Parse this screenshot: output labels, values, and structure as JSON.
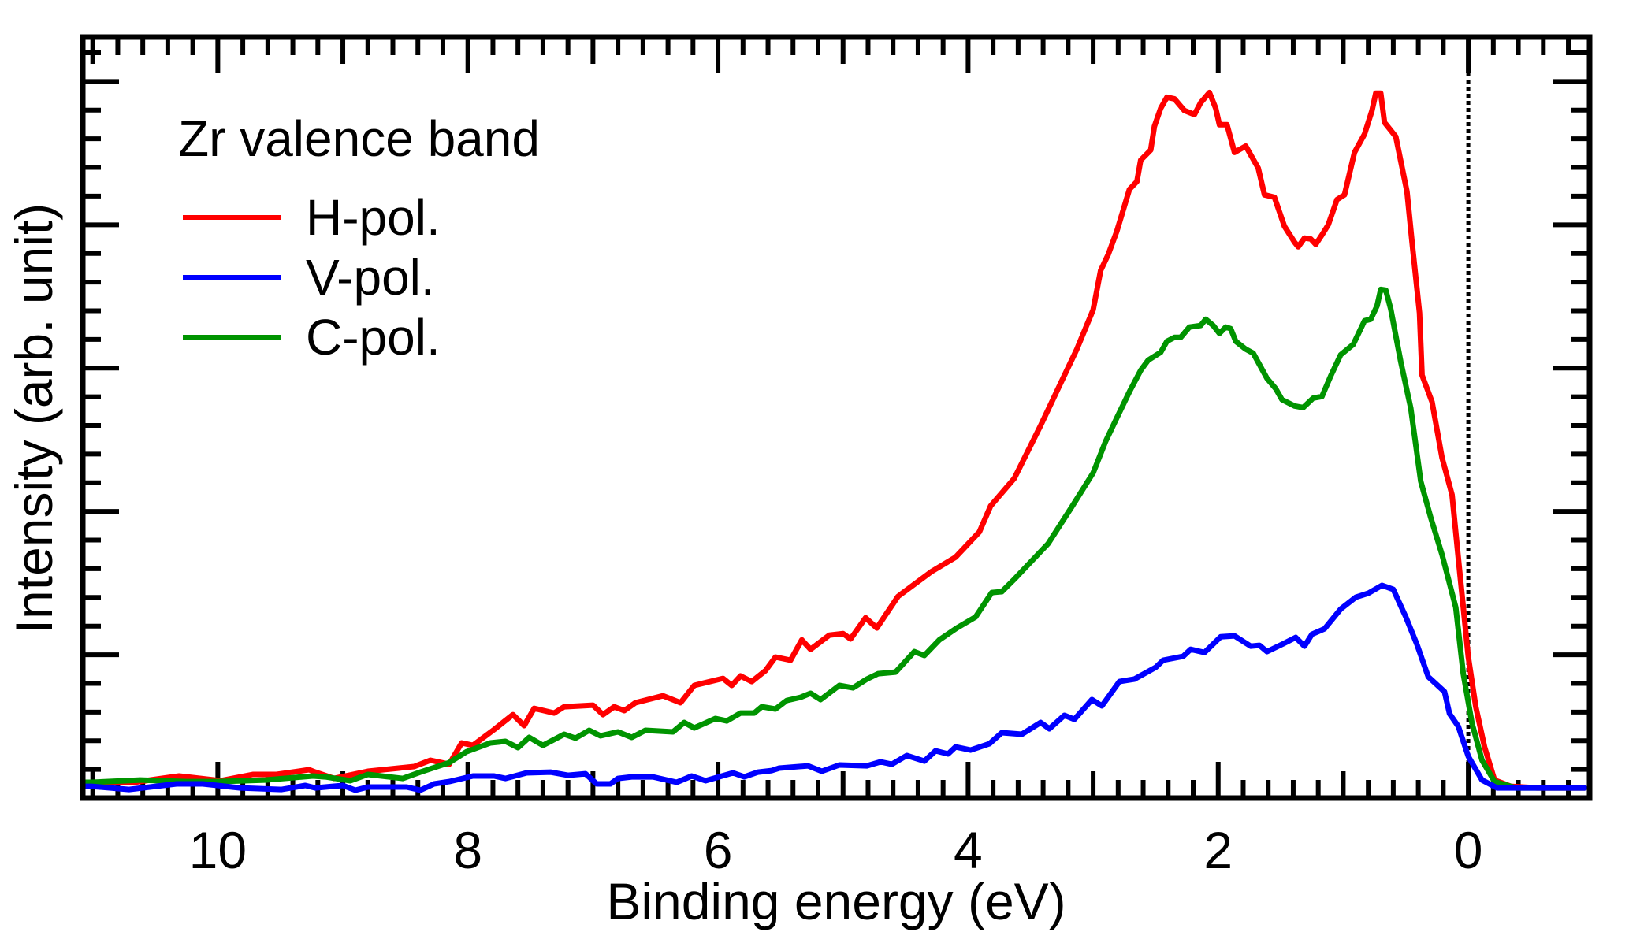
{
  "chart_data": {
    "type": "line",
    "title": "Zr valence band",
    "xlabel": "Binding energy (eV)",
    "ylabel": "Intensity (arb. unit)",
    "xlim": [
      11.08,
      -0.97
    ],
    "x_reversed": true,
    "ylim": [
      0,
      5.31
    ],
    "x_major_ticks": [
      10,
      8,
      6,
      4,
      2,
      0
    ],
    "x_tick_labels": [
      "10",
      "8",
      "6",
      "4",
      "2",
      "0"
    ],
    "x_minor_step": 0.2,
    "x_medium_step": 1,
    "y_major_step": 1,
    "y_minor_step": 0.2,
    "y_tick_labels_shown": false,
    "grid": false,
    "legend_position": "top-left",
    "fermi_level_marker": {
      "x": 0,
      "style": "dotted"
    },
    "series": [
      {
        "name": "H-pol.",
        "color": "#ff0000",
        "x": [
          11.07,
          10.67,
          10.31,
          9.98,
          9.72,
          9.53,
          9.27,
          9.22,
          9.07,
          8.8,
          8.43,
          8.3,
          8.15,
          8.05,
          7.96,
          7.79,
          7.64,
          7.55,
          7.47,
          7.31,
          7.23,
          7.0,
          6.92,
          6.83,
          6.75,
          6.66,
          6.44,
          6.3,
          6.19,
          5.96,
          5.89,
          5.82,
          5.73,
          5.62,
          5.54,
          5.42,
          5.33,
          5.26,
          5.11,
          5.0,
          4.94,
          4.82,
          4.73,
          4.56,
          4.29,
          4.1,
          3.91,
          3.82,
          3.63,
          3.42,
          3.28,
          3.13,
          3.0,
          2.94,
          2.88,
          2.81,
          2.71,
          2.65,
          2.62,
          2.54,
          2.51,
          2.46,
          2.41,
          2.35,
          2.27,
          2.19,
          2.14,
          2.07,
          2.02,
          1.99,
          1.93,
          1.87,
          1.78,
          1.68,
          1.63,
          1.55,
          1.47,
          1.39,
          1.36,
          1.31,
          1.26,
          1.22,
          1.17,
          1.12,
          1.05,
          0.99,
          0.91,
          0.83,
          0.77,
          0.74,
          0.7,
          0.67,
          0.58,
          0.49,
          0.45,
          0.39,
          0.37,
          0.29,
          0.21,
          0.13,
          0.08,
          0.0,
          -0.06,
          -0.13,
          -0.21,
          -0.34,
          -0.55,
          -0.93
        ],
        "y": [
          0.11,
          0.11,
          0.154,
          0.121,
          0.165,
          0.165,
          0.198,
          0.181,
          0.137,
          0.187,
          0.22,
          0.264,
          0.236,
          0.385,
          0.368,
          0.478,
          0.582,
          0.505,
          0.626,
          0.593,
          0.637,
          0.648,
          0.582,
          0.637,
          0.61,
          0.665,
          0.714,
          0.665,
          0.786,
          0.835,
          0.786,
          0.852,
          0.813,
          0.89,
          0.984,
          0.962,
          1.104,
          1.038,
          1.137,
          1.148,
          1.11,
          1.258,
          1.187,
          1.407,
          1.582,
          1.681,
          1.857,
          2.038,
          2.231,
          2.599,
          2.857,
          3.132,
          3.407,
          3.681,
          3.791,
          3.956,
          4.247,
          4.302,
          4.451,
          4.522,
          4.687,
          4.813,
          4.89,
          4.879,
          4.797,
          4.769,
          4.852,
          4.923,
          4.813,
          4.698,
          4.698,
          4.505,
          4.549,
          4.396,
          4.209,
          4.192,
          3.989,
          3.879,
          3.846,
          3.907,
          3.901,
          3.863,
          3.929,
          4.0,
          4.176,
          4.209,
          4.505,
          4.632,
          4.797,
          4.918,
          4.918,
          4.714,
          4.615,
          4.231,
          3.879,
          3.385,
          2.951,
          2.764,
          2.374,
          2.115,
          1.676,
          0.984,
          0.637,
          0.357,
          0.126,
          0.082,
          0.071,
          0.071
        ]
      },
      {
        "name": "V-pol.",
        "color": "#0000ff",
        "x": [
          11.07,
          11.01,
          10.71,
          10.33,
          10.12,
          9.82,
          9.49,
          9.3,
          9.22,
          9.0,
          8.9,
          8.8,
          8.49,
          8.38,
          8.27,
          8.15,
          7.96,
          7.79,
          7.7,
          7.53,
          7.34,
          7.2,
          7.06,
          6.97,
          6.86,
          6.8,
          6.69,
          6.52,
          6.33,
          6.21,
          6.1,
          5.88,
          5.79,
          5.68,
          5.57,
          5.51,
          5.28,
          5.17,
          5.03,
          4.81,
          4.7,
          4.61,
          4.49,
          4.35,
          4.26,
          4.16,
          4.1,
          3.98,
          3.83,
          3.73,
          3.57,
          3.42,
          3.35,
          3.23,
          3.15,
          3.01,
          2.93,
          2.79,
          2.67,
          2.5,
          2.44,
          2.28,
          2.22,
          2.11,
          1.98,
          1.87,
          1.8,
          1.74,
          1.67,
          1.61,
          1.48,
          1.38,
          1.31,
          1.25,
          1.15,
          1.02,
          0.9,
          0.8,
          0.69,
          0.6,
          0.5,
          0.41,
          0.32,
          0.19,
          0.15,
          0.08,
          0.0,
          -0.11,
          -0.23,
          -0.93
        ],
        "y": [
          0.082,
          0.082,
          0.06,
          0.099,
          0.099,
          0.071,
          0.06,
          0.088,
          0.071,
          0.088,
          0.055,
          0.077,
          0.077,
          0.055,
          0.099,
          0.115,
          0.154,
          0.154,
          0.137,
          0.176,
          0.181,
          0.159,
          0.17,
          0.099,
          0.099,
          0.137,
          0.148,
          0.148,
          0.11,
          0.154,
          0.121,
          0.176,
          0.148,
          0.181,
          0.192,
          0.209,
          0.225,
          0.187,
          0.231,
          0.225,
          0.253,
          0.236,
          0.297,
          0.258,
          0.33,
          0.308,
          0.357,
          0.335,
          0.379,
          0.456,
          0.445,
          0.527,
          0.484,
          0.577,
          0.549,
          0.687,
          0.643,
          0.813,
          0.83,
          0.912,
          0.962,
          0.989,
          1.038,
          1.016,
          1.126,
          1.132,
          1.093,
          1.06,
          1.066,
          1.022,
          1.077,
          1.121,
          1.06,
          1.143,
          1.181,
          1.319,
          1.401,
          1.429,
          1.484,
          1.456,
          1.264,
          1.071,
          0.846,
          0.742,
          0.588,
          0.5,
          0.291,
          0.126,
          0.071,
          0.071
        ]
      },
      {
        "name": "C-pol.",
        "color": "#009400",
        "x": [
          11.07,
          11.01,
          10.62,
          10.25,
          10.0,
          9.62,
          9.24,
          9.14,
          8.94,
          8.8,
          8.52,
          8.38,
          8.15,
          8.01,
          7.82,
          7.7,
          7.6,
          7.51,
          7.4,
          7.23,
          7.14,
          7.03,
          6.94,
          6.8,
          6.69,
          6.58,
          6.36,
          6.27,
          6.19,
          6.02,
          5.93,
          5.82,
          5.71,
          5.65,
          5.54,
          5.45,
          5.34,
          5.26,
          5.18,
          5.03,
          4.92,
          4.81,
          4.72,
          4.58,
          4.43,
          4.35,
          4.23,
          4.09,
          3.94,
          3.81,
          3.73,
          3.63,
          3.54,
          3.36,
          3.17,
          3.0,
          2.9,
          2.81,
          2.71,
          2.62,
          2.56,
          2.46,
          2.41,
          2.35,
          2.3,
          2.23,
          2.14,
          2.1,
          2.04,
          1.99,
          1.94,
          1.9,
          1.86,
          1.78,
          1.72,
          1.61,
          1.54,
          1.49,
          1.39,
          1.32,
          1.24,
          1.17,
          1.1,
          1.02,
          0.92,
          0.83,
          0.78,
          0.73,
          0.7,
          0.66,
          0.62,
          0.54,
          0.46,
          0.38,
          0.3,
          0.21,
          0.1,
          0.04,
          -0.03,
          -0.11,
          -0.21,
          -0.38,
          -0.93
        ],
        "y": [
          0.11,
          0.11,
          0.126,
          0.115,
          0.115,
          0.126,
          0.154,
          0.148,
          0.121,
          0.165,
          0.137,
          0.181,
          0.247,
          0.324,
          0.385,
          0.396,
          0.352,
          0.423,
          0.368,
          0.445,
          0.418,
          0.473,
          0.434,
          0.462,
          0.423,
          0.473,
          0.462,
          0.527,
          0.489,
          0.555,
          0.538,
          0.593,
          0.593,
          0.637,
          0.621,
          0.681,
          0.703,
          0.731,
          0.687,
          0.786,
          0.769,
          0.83,
          0.868,
          0.879,
          1.022,
          0.995,
          1.104,
          1.187,
          1.264,
          1.434,
          1.44,
          1.527,
          1.61,
          1.775,
          2.033,
          2.269,
          2.489,
          2.654,
          2.835,
          2.984,
          3.055,
          3.11,
          3.187,
          3.214,
          3.214,
          3.286,
          3.297,
          3.341,
          3.297,
          3.242,
          3.286,
          3.275,
          3.187,
          3.132,
          3.104,
          2.929,
          2.857,
          2.78,
          2.736,
          2.725,
          2.791,
          2.802,
          2.945,
          3.093,
          3.165,
          3.33,
          3.341,
          3.434,
          3.549,
          3.544,
          3.412,
          3.044,
          2.72,
          2.209,
          1.956,
          1.698,
          1.33,
          0.868,
          0.522,
          0.264,
          0.115,
          0.071,
          0.071
        ]
      }
    ]
  }
}
